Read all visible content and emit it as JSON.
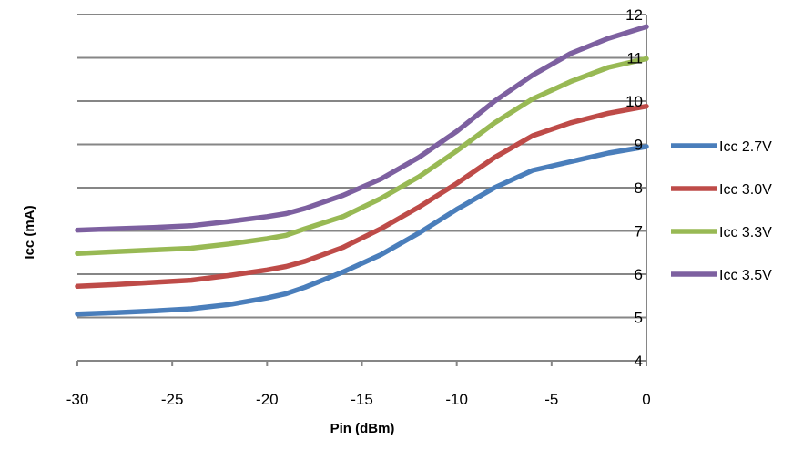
{
  "chart_data": {
    "type": "line",
    "title": "",
    "xlabel": "Pin (dBm)",
    "ylabel": "Icc (mA)",
    "xlim": [
      -30,
      0
    ],
    "ylim": [
      4,
      12
    ],
    "x_ticks": [
      "-30",
      "-25",
      "-20",
      "-15",
      "-10",
      "-5",
      "0"
    ],
    "y_ticks": [
      "4",
      "5",
      "6",
      "7",
      "8",
      "9",
      "10",
      "11",
      "12"
    ],
    "grid": "horizontal",
    "legend_position": "right",
    "x": [
      -30,
      -28,
      -26,
      -24,
      -22,
      -20,
      -19,
      -18,
      -16,
      -14,
      -12,
      -10,
      -8,
      -6,
      -4,
      -2,
      0
    ],
    "series": [
      {
        "name": "Icc 2.7V",
        "color": "#4a7ebb",
        "values": [
          5.08,
          5.11,
          5.15,
          5.2,
          5.3,
          5.45,
          5.55,
          5.7,
          6.05,
          6.45,
          6.95,
          7.5,
          8.0,
          8.4,
          8.6,
          8.8,
          8.95
        ]
      },
      {
        "name": "Icc 3.0V",
        "color": "#be4b48",
        "values": [
          5.72,
          5.76,
          5.81,
          5.86,
          5.97,
          6.1,
          6.18,
          6.3,
          6.62,
          7.05,
          7.55,
          8.1,
          8.7,
          9.2,
          9.5,
          9.72,
          9.88
        ]
      },
      {
        "name": "Icc 3.3V",
        "color": "#98b954",
        "values": [
          6.48,
          6.52,
          6.56,
          6.6,
          6.7,
          6.82,
          6.9,
          7.05,
          7.33,
          7.75,
          8.25,
          8.85,
          9.5,
          10.05,
          10.45,
          10.78,
          10.98
        ]
      },
      {
        "name": "Icc 3.5V",
        "color": "#7d60a0",
        "values": [
          7.02,
          7.05,
          7.08,
          7.12,
          7.22,
          7.33,
          7.4,
          7.52,
          7.82,
          8.2,
          8.7,
          9.3,
          10.0,
          10.6,
          11.1,
          11.45,
          11.72
        ]
      }
    ]
  }
}
